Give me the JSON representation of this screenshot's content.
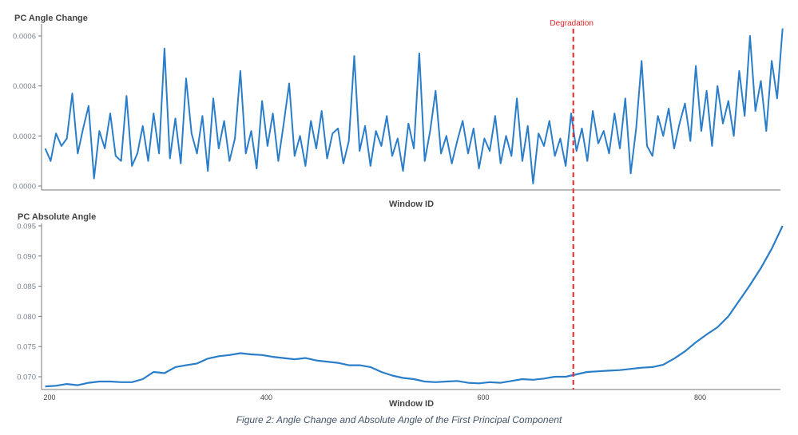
{
  "colors": {
    "line": "#2a7dc9",
    "annotation": "#e8262a",
    "axis": "#777777",
    "tick_text": "#7a8190",
    "title_text": "#444444"
  },
  "caption": "Figure 2: Angle Change and Absolute Angle of the First Principal Component",
  "chart_data": [
    {
      "type": "line",
      "title": "PC Angle Change",
      "xlabel": "Window ID",
      "ylabel": "",
      "ylim": [
        0,
        0.0006
      ],
      "yticks": [
        "0.0000",
        "0.0002",
        "0.0004",
        "0.0006"
      ],
      "ytick_values": [
        0,
        0.0002,
        0.0004,
        0.0006
      ],
      "xlim": [
        193,
        876
      ],
      "grid": false,
      "x_start": 196,
      "x_step": 5,
      "values": [
        0.00015,
        0.0001,
        0.00021,
        0.00016,
        0.00019,
        0.00037,
        0.00013,
        0.00023,
        0.00032,
        3e-05,
        0.00022,
        0.00015,
        0.00029,
        0.00012,
        0.0001,
        0.00036,
        8e-05,
        0.00013,
        0.00024,
        0.0001,
        0.00029,
        0.00013,
        0.00055,
        0.00011,
        0.00027,
        9e-05,
        0.00043,
        0.00021,
        0.00013,
        0.00028,
        6e-05,
        0.00035,
        0.00015,
        0.00026,
        0.0001,
        0.00019,
        0.00046,
        0.00013,
        0.00022,
        7e-05,
        0.00034,
        0.00016,
        0.00029,
        0.0001,
        0.00025,
        0.00041,
        0.00012,
        0.0002,
        8e-05,
        0.00026,
        0.00015,
        0.0003,
        0.00011,
        0.00021,
        0.00023,
        9e-05,
        0.00018,
        0.00052,
        0.00014,
        0.00024,
        8e-05,
        0.00022,
        0.00016,
        0.00028,
        0.00012,
        0.00019,
        6e-05,
        0.00025,
        0.00015,
        0.00053,
        0.0001,
        0.00022,
        0.00038,
        0.00013,
        0.0002,
        9e-05,
        0.00018,
        0.00026,
        0.00013,
        0.00023,
        7e-05,
        0.00019,
        0.00014,
        0.00028,
        9e-05,
        0.0002,
        0.00012,
        0.00035,
        0.0001,
        0.00024,
        1e-05,
        0.00021,
        0.00016,
        0.00026,
        0.00012,
        0.00019,
        8e-05,
        0.00029,
        0.00014,
        0.00023,
        0.0001,
        0.0003,
        0.00017,
        0.00022,
        0.00013,
        0.00029,
        0.00015,
        0.00035,
        5e-05,
        0.00023,
        0.0005,
        0.00016,
        0.00012,
        0.00028,
        0.0002,
        0.00031,
        0.00015,
        0.00025,
        0.00033,
        0.00018,
        0.00048,
        0.00022,
        0.00038,
        0.00016,
        0.0004,
        0.00025,
        0.00034,
        0.0002,
        0.00046,
        0.00028,
        0.0006,
        0.0003,
        0.00042,
        0.00022,
        0.0005,
        0.00035,
        0.00063
      ]
    },
    {
      "type": "line",
      "title": "PC Absolute Angle",
      "xlabel": "Window ID",
      "ylabel": "",
      "ylim": [
        0.0678,
        0.0955
      ],
      "yticks": [
        "0.070",
        "0.075",
        "0.080",
        "0.085",
        "0.090",
        "0.095"
      ],
      "ytick_values": [
        0.07,
        0.075,
        0.08,
        0.085,
        0.09,
        0.095
      ],
      "xticks": [
        "200",
        "400",
        "600",
        "800"
      ],
      "xtick_values": [
        200,
        400,
        600,
        800
      ],
      "xlim": [
        193,
        876
      ],
      "grid": false,
      "x_start": 196,
      "x_step": 10,
      "values": [
        0.0684,
        0.0685,
        0.0688,
        0.0686,
        0.069,
        0.0692,
        0.0692,
        0.0691,
        0.0691,
        0.0696,
        0.0708,
        0.0706,
        0.0716,
        0.0719,
        0.0722,
        0.073,
        0.0734,
        0.0736,
        0.0739,
        0.0737,
        0.0736,
        0.0733,
        0.0731,
        0.0729,
        0.0731,
        0.0727,
        0.0725,
        0.0723,
        0.0719,
        0.0719,
        0.0716,
        0.0708,
        0.0702,
        0.0698,
        0.0696,
        0.0692,
        0.0691,
        0.0692,
        0.0693,
        0.069,
        0.0689,
        0.0691,
        0.069,
        0.0693,
        0.0696,
        0.0695,
        0.0697,
        0.07,
        0.07,
        0.0704,
        0.0708,
        0.0709,
        0.071,
        0.0711,
        0.0713,
        0.0715,
        0.0716,
        0.072,
        0.073,
        0.0742,
        0.0757,
        0.077,
        0.0782,
        0.08,
        0.0826,
        0.0852,
        0.088,
        0.0912,
        0.095
      ]
    }
  ],
  "annotation": {
    "label": "Degradation",
    "x": 683
  }
}
